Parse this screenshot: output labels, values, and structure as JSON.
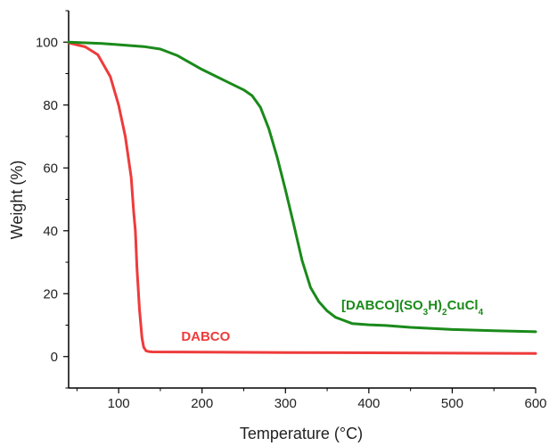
{
  "chart_data": {
    "type": "line",
    "xlabel": "Temperature (°C)",
    "ylabel": "Weight (%)",
    "xlim": [
      40,
      600
    ],
    "ylim": [
      -10,
      110
    ],
    "x_ticks": [
      100,
      200,
      300,
      400,
      500,
      600
    ],
    "y_ticks": [
      0,
      20,
      40,
      60,
      80,
      100
    ],
    "grid": false,
    "legend": "none",
    "series": [
      {
        "name": "DABCO",
        "color": "#ee3b3b",
        "label_x": 175,
        "label_y": 5,
        "x": [
          40,
          60,
          75,
          90,
          100,
          108,
          115,
          118,
          120,
          122,
          125,
          128,
          130,
          133,
          136,
          140,
          200,
          300,
          400,
          500,
          600
        ],
        "y": [
          99.8,
          98.5,
          96,
          89,
          80,
          70,
          57,
          46,
          40,
          28,
          15,
          6,
          3,
          1.8,
          1.6,
          1.5,
          1.4,
          1.3,
          1.2,
          1.1,
          1.0
        ]
      },
      {
        "name": "[DABCO](SO3H)2CuCl4",
        "color": "#1a8a1a",
        "label_x": 367,
        "label_y": 15,
        "x": [
          40,
          60,
          80,
          100,
          130,
          150,
          170,
          200,
          230,
          250,
          260,
          270,
          280,
          290,
          300,
          310,
          320,
          330,
          340,
          350,
          360,
          380,
          400,
          420,
          450,
          500,
          550,
          600
        ],
        "y": [
          100,
          99.8,
          99.6,
          99.2,
          98.6,
          97.8,
          95.8,
          91.3,
          87.4,
          84.8,
          83,
          79.3,
          72.5,
          63.5,
          53,
          42,
          30.5,
          22,
          17.5,
          14.5,
          12.5,
          10.5,
          10.1,
          9.9,
          9.3,
          8.6,
          8.2,
          7.9
        ]
      }
    ]
  }
}
